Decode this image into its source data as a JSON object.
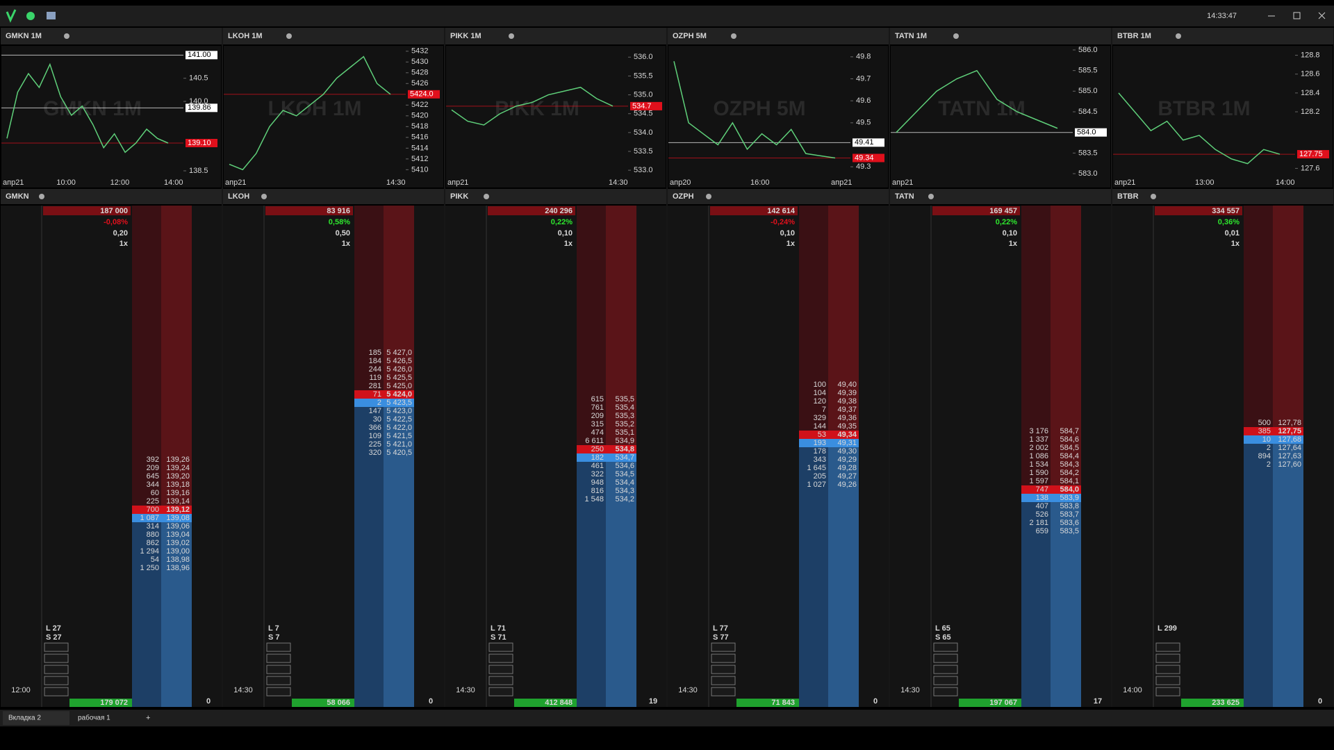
{
  "toolbar": {
    "time": "14:33:47"
  },
  "charts": [
    {
      "title": "GMKN 1M",
      "ylim": [
        138.35,
        141.2
      ],
      "yticks": [
        {
          "value": 138.5,
          "label": "138.5"
        },
        {
          "value": 140.0,
          "label": "140.0"
        },
        140.5
      ],
      "levels": [
        {
          "value": 141.0,
          "label": "141.00",
          "color": "#ffffff"
        },
        {
          "value": 139.86,
          "label": "139.86",
          "color": "#ffffff"
        },
        {
          "value": 139.1,
          "label": "139.10",
          "color": "#e0101c"
        }
      ],
      "xlabels": [
        "апр21",
        "10:00",
        "12:00",
        "14:00"
      ],
      "values": [
        139.2,
        140.2,
        140.6,
        140.3,
        140.8,
        140.1,
        139.7,
        139.9,
        139.5,
        139.0,
        139.3,
        138.9,
        139.1,
        139.4,
        139.2,
        139.1
      ]
    },
    {
      "title": "LKOH 1M",
      "ylim": [
        5408.5,
        5433
      ],
      "yticks": [
        5410,
        5412,
        5414,
        5416,
        5418,
        5420,
        5422,
        5426,
        5428,
        5430,
        5432
      ],
      "levels": [
        {
          "value": 5424.0,
          "label": "5424.0",
          "color": "#e0101c"
        }
      ],
      "xlabels": [
        "апр21",
        "14:30"
      ],
      "values": [
        5411,
        5410,
        5413,
        5418,
        5421,
        5420,
        5422,
        5424,
        5427,
        5429,
        5431,
        5426,
        5424
      ]
    },
    {
      "title": "PIKK 1M",
      "ylim": [
        532.8,
        536.3
      ],
      "yticks": [
        {
          "value": 533.0,
          "label": "533.0"
        },
        533.5,
        {
          "value": 534.0,
          "label": "534.0"
        },
        534.5,
        {
          "value": 535.0,
          "label": "535.0"
        },
        535.5,
        {
          "value": 536.0,
          "label": "536.0"
        }
      ],
      "levels": [
        {
          "value": 534.7,
          "label": "534.7",
          "color": "#e0101c"
        }
      ],
      "xlabels": [
        "апр21",
        "14:30"
      ],
      "values": [
        534.6,
        534.3,
        534.2,
        534.5,
        534.7,
        534.8,
        535.0,
        535.1,
        535.2,
        534.9,
        534.7
      ]
    },
    {
      "title": "OZPH 5M",
      "ylim": [
        49.25,
        49.85
      ],
      "yticks": [
        49.3,
        49.5,
        49.6,
        49.7,
        49.8
      ],
      "levels": [
        {
          "value": 49.41,
          "label": "49.41",
          "color": "#ffffff"
        },
        {
          "value": 49.34,
          "label": "49.34",
          "color": "#e0101c"
        }
      ],
      "xlabels": [
        "апр20",
        "16:00",
        "апр21"
      ],
      "values": [
        49.78,
        49.5,
        49.45,
        49.4,
        49.5,
        49.38,
        49.45,
        49.4,
        49.47,
        49.36,
        49.35,
        49.34
      ]
    },
    {
      "title": "TATN 1M",
      "ylim": [
        582.9,
        586.1
      ],
      "yticks": [
        {
          "value": 583.0,
          "label": "583.0"
        },
        583.5,
        584.5,
        {
          "value": 585.0,
          "label": "585.0"
        },
        585.5,
        {
          "value": 586.0,
          "label": "586.0"
        }
      ],
      "levels": [
        {
          "value": 584.0,
          "label": "584.0",
          "color": "#ffffff"
        }
      ],
      "xlabels": [
        "апр21"
      ],
      "values": [
        584.0,
        584.5,
        585.0,
        585.3,
        585.5,
        584.8,
        584.5,
        584.3,
        584.1
      ]
    },
    {
      "title": "BTBR 1M",
      "ylim": [
        127.5,
        128.9
      ],
      "yticks": [
        127.6,
        128.2,
        128.4,
        128.6,
        128.8
      ],
      "levels": [
        {
          "value": 127.75,
          "label": "127.75",
          "color": "#e0101c"
        }
      ],
      "xlabels": [
        "апр21",
        "13:00",
        "14:00"
      ],
      "values": [
        128.4,
        128.2,
        128.0,
        128.1,
        127.9,
        127.95,
        127.8,
        127.7,
        127.65,
        127.8,
        127.75
      ]
    }
  ],
  "books": [
    {
      "title": "GMKN",
      "volume": "187 000",
      "change": "-0,08%",
      "change_color": "#e0101c",
      "step": "0,20",
      "mult": "1x",
      "long": "L 27",
      "short": "S 27",
      "time": "12:00",
      "total": "179 072",
      "position": "0",
      "asks": [
        [
          "392",
          "139,26"
        ],
        [
          "209",
          "139,24"
        ],
        [
          "645",
          "139,20"
        ],
        [
          "344",
          "139,18"
        ],
        [
          "60",
          "139,16"
        ],
        [
          "225",
          "139,14"
        ],
        [
          "700",
          "139,12"
        ]
      ],
      "bids": [
        [
          "1 087",
          "139,08"
        ],
        [
          "314",
          "139,06"
        ],
        [
          "880",
          "139,04"
        ],
        [
          "862",
          "139,02"
        ],
        [
          "1 294",
          "139,00"
        ],
        [
          "54",
          "138,98"
        ],
        [
          "1 250",
          "138,96"
        ]
      ]
    },
    {
      "title": "LKOH",
      "volume": "83 916",
      "change": "0,58%",
      "change_color": "#2ee62e",
      "step": "0,50",
      "mult": "1x",
      "long": "L 7",
      "short": "S 7",
      "time": "14:30",
      "total": "58 066",
      "position": "0",
      "asks": [
        [
          "185",
          "5 427,0"
        ],
        [
          "184",
          "5 426,5"
        ],
        [
          "244",
          "5 426,0"
        ],
        [
          "119",
          "5 425,5"
        ],
        [
          "281",
          "5 425,0"
        ],
        [
          "71",
          "5 424,0"
        ]
      ],
      "bids": [
        [
          "2",
          "5 423,5"
        ],
        [
          "147",
          "5 423,0"
        ],
        [
          "30",
          "5 422,5"
        ],
        [
          "366",
          "5 422,0"
        ],
        [
          "109",
          "5 421,5"
        ],
        [
          "225",
          "5 421,0"
        ],
        [
          "320",
          "5 420,5"
        ]
      ]
    },
    {
      "title": "PIKK",
      "volume": "240 296",
      "change": "0,22%",
      "change_color": "#2ee62e",
      "step": "0,10",
      "mult": "1x",
      "long": "L 71",
      "short": "S 71",
      "time": "14:30",
      "total": "412 848",
      "position": "19",
      "asks": [
        [
          "615",
          "535,5"
        ],
        [
          "761",
          "535,4"
        ],
        [
          "209",
          "535,3"
        ],
        [
          "315",
          "535,2"
        ],
        [
          "474",
          "535,1"
        ],
        [
          "6 611",
          "534,9"
        ],
        [
          "250",
          "534,8"
        ]
      ],
      "bids": [
        [
          "182",
          "534,7"
        ],
        [
          "461",
          "534,6"
        ],
        [
          "322",
          "534,5"
        ],
        [
          "948",
          "534,4"
        ],
        [
          "816",
          "534,3"
        ],
        [
          "1 548",
          "534,2"
        ]
      ]
    },
    {
      "title": "OZPH",
      "volume": "142 614",
      "change": "-0,24%",
      "change_color": "#e0101c",
      "step": "0,10",
      "mult": "1x",
      "long": "L 77",
      "short": "S 77",
      "time": "14:30",
      "total": "71 843",
      "position": "0",
      "asks": [
        [
          "100",
          "49,40"
        ],
        [
          "104",
          "49,39"
        ],
        [
          "120",
          "49,38"
        ],
        [
          "7",
          "49,37"
        ],
        [
          "329",
          "49,36"
        ],
        [
          "144",
          "49,35"
        ],
        [
          "53",
          "49,34"
        ]
      ],
      "bids": [
        [
          "193",
          "49,31"
        ],
        [
          "178",
          "49,30"
        ],
        [
          "343",
          "49,29"
        ],
        [
          "1 645",
          "49,28"
        ],
        [
          "205",
          "49,27"
        ],
        [
          "1 027",
          "49,26"
        ]
      ]
    },
    {
      "title": "TATN",
      "volume": "169 457",
      "change": "0,22%",
      "change_color": "#2ee62e",
      "step": "0,10",
      "mult": "1x",
      "long": "L 65",
      "short": "S 65",
      "time": "14:30",
      "total": "197 067",
      "position": "17",
      "asks": [
        [
          "3 176",
          "584,7"
        ],
        [
          "1 337",
          "584,6"
        ],
        [
          "2 002",
          "584,5"
        ],
        [
          "1 086",
          "584,4"
        ],
        [
          "1 534",
          "584,3"
        ],
        [
          "1 590",
          "584,2"
        ],
        [
          "1 597",
          "584,1"
        ],
        [
          "747",
          "584,0"
        ]
      ],
      "bids": [
        [
          "138",
          "583,9"
        ],
        [
          "407",
          "583,8"
        ],
        [
          "526",
          "583,7"
        ],
        [
          "2 181",
          "583,6"
        ],
        [
          "659",
          "583,5"
        ]
      ]
    },
    {
      "title": "BTBR",
      "volume": "334 557",
      "change": "0,36%",
      "change_color": "#2ee62e",
      "step": "0,01",
      "mult": "1x",
      "long": "L 299",
      "short": "",
      "time": "14:00",
      "total": "233 625",
      "position": "0",
      "asks": [
        [
          "500",
          "127,78"
        ],
        [
          "385",
          "127,75"
        ]
      ],
      "bids": [
        [
          "10",
          "127,68"
        ],
        [
          "2",
          "127,64"
        ],
        [
          "894",
          "127,63"
        ],
        [
          "2",
          "127,60"
        ]
      ]
    }
  ],
  "tabs": {
    "items": [
      "Вкладка 2",
      "рабочая 1"
    ],
    "add": "+"
  }
}
